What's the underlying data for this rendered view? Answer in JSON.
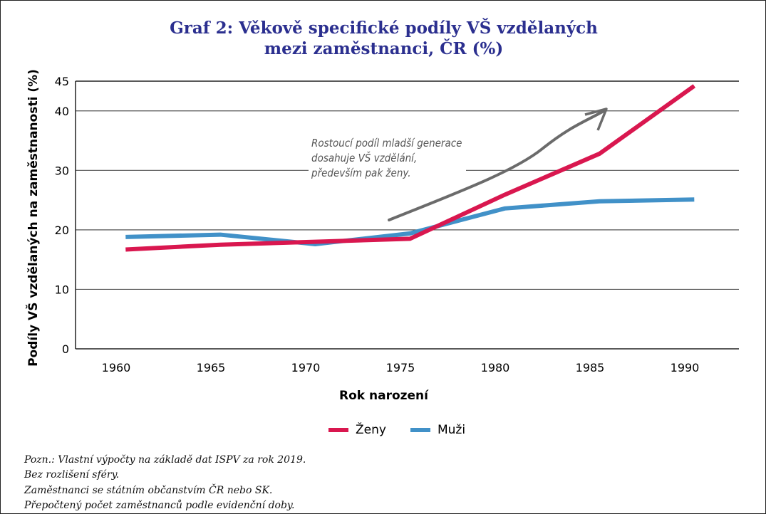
{
  "title_line1": "Graf 2: Věkově specifické podíly VŠ vzdělaných",
  "title_line2": "mezi zaměstnanci, ČR (%)",
  "annotation": [
    "Rostoucí podíl mladší generace",
    "dosahuje VŠ vzdělání,",
    "především pak ženy."
  ],
  "notes": [
    "Pozn.: Vlastní výpočty na základě dat ISPV za rok 2019.",
    "Bez rozlišení sféry.",
    "Zaměstnanci se státním občanstvím ČR nebo SK.",
    "Přepočtený počet zaměstnanců podle evidenční doby."
  ],
  "chart_data": {
    "type": "line",
    "title": "Graf 2: Věkově specifické podíly VŠ vzdělaných mezi zaměstnanci, ČR (%)",
    "xlabel": "Rok narození",
    "ylabel": "Podíly VŠ vzdělaných na zaměstnanosti (%)",
    "xticks": [
      "1960",
      "1965",
      "1970",
      "1975",
      "1980",
      "1985",
      "1990"
    ],
    "yticks": [
      "0",
      "10",
      "20",
      "30",
      "40",
      "45"
    ],
    "ylim": [
      0,
      45
    ],
    "xlim": [
      1958.3,
      1993
    ],
    "grid": true,
    "legend": "bottom",
    "x": [
      1960.5,
      1965.5,
      1970.5,
      1975.5,
      1980.5,
      1985.5,
      1990.5
    ],
    "series": [
      {
        "name": "Ženy",
        "color": "#d9174f",
        "values": [
          16.7,
          17.5,
          18.0,
          18.5,
          25.9,
          32.8,
          44.2
        ]
      },
      {
        "name": "Muži",
        "color": "#4191c8",
        "values": [
          18.8,
          19.2,
          17.6,
          19.4,
          23.6,
          24.8,
          25.1
        ]
      }
    ]
  }
}
